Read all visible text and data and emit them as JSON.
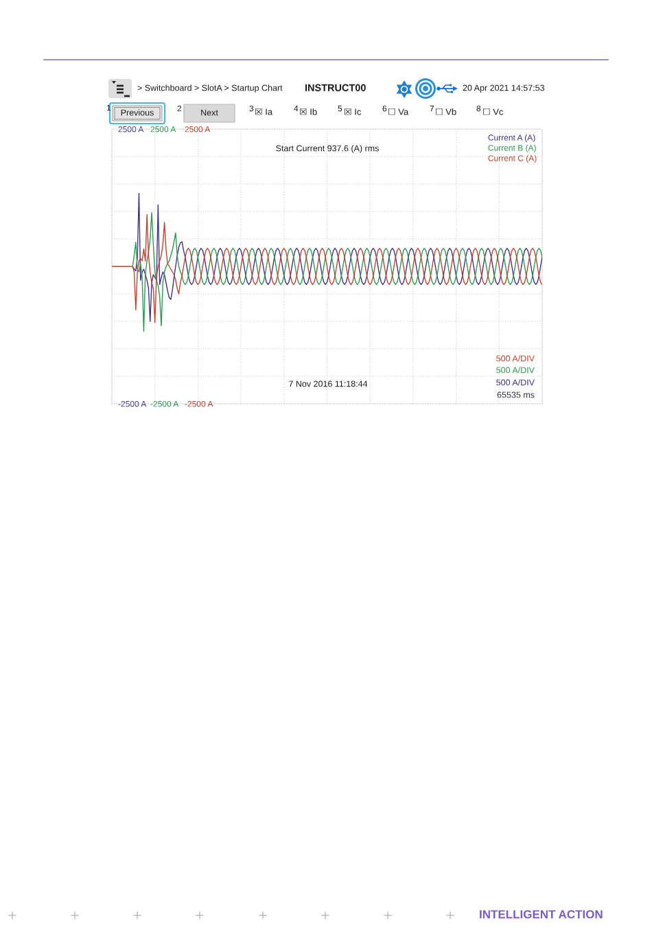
{
  "chart_data": {
    "type": "line",
    "title": "> Switchboard > SlotA > Startup Chart",
    "categories": [
      null,
      null,
      null,
      null,
      null,
      null,
      null,
      null,
      null,
      null,
      null,
      null,
      null,
      null,
      null,
      null,
      null,
      null,
      null,
      null,
      null,
      null,
      null,
      null,
      null,
      null,
      null,
      null,
      null,
      null,
      null,
      null,
      null,
      null,
      null,
      null,
      null,
      null,
      null,
      null,
      null,
      null,
      null,
      null,
      null,
      null,
      null,
      null,
      null,
      null,
      null,
      null,
      null,
      null,
      null,
      null,
      null,
      null,
      null,
      null,
      null,
      null,
      null,
      null,
      null,
      null,
      null,
      null,
      null,
      null,
      null,
      null,
      null,
      null,
      null,
      null,
      null,
      null,
      null,
      null,
      null,
      null,
      null,
      null,
      null,
      null,
      null,
      null,
      null,
      null,
      null,
      null,
      null,
      null,
      null,
      null,
      null,
      null,
      null,
      null,
      null,
      null,
      null,
      null,
      null,
      null,
      null,
      null,
      null,
      null,
      null,
      null,
      null,
      null,
      null,
      null,
      null,
      null,
      null,
      null,
      null,
      null,
      null,
      null,
      null,
      null,
      null,
      null,
      null,
      null,
      null,
      null,
      null,
      null,
      null,
      null,
      null,
      null,
      null,
      null,
      null,
      null,
      null,
      null,
      null,
      null,
      null,
      null,
      null,
      null,
      null,
      null,
      null,
      null,
      null,
      null,
      null,
      null,
      null,
      null,
      null,
      null,
      null,
      null,
      null,
      null,
      null,
      null,
      null,
      null,
      null,
      null,
      null,
      null,
      null,
      null,
      null,
      null,
      null,
      null,
      null,
      null,
      null,
      null,
      null,
      null,
      null,
      null,
      null,
      null,
      null,
      null,
      null,
      null,
      null,
      null,
      null,
      null,
      null,
      null,
      null,
      null,
      null,
      null,
      null,
      null,
      null,
      null,
      null,
      null,
      null,
      null,
      null,
      null,
      null,
      null,
      null,
      null,
      null,
      null,
      null,
      null,
      null,
      null,
      null,
      null,
      null,
      null,
      null,
      null,
      null,
      null,
      null,
      null,
      null,
      null,
      null,
      null,
      null,
      null,
      null,
      null,
      null,
      null,
      null,
      null,
      null,
      null,
      null,
      null,
      null,
      null,
      null,
      null,
      null,
      null,
      null,
      null,
      null,
      null,
      null,
      null,
      null,
      null,
      null,
      null,
      null,
      null,
      null,
      null,
      null
    ],
    "series": [
      {
        "name": "Current A (A)",
        "color": "#40308f",
        "axis": "y",
        "values": [
          null,
          null,
          null,
          null,
          null,
          null,
          null,
          null,
          null,
          null,
          null,
          null,
          null,
          0,
          -50,
          -80,
          150,
          1330,
          -250,
          -100,
          -50,
          -150,
          -250,
          -400,
          -1000,
          -300,
          -150,
          -200,
          -250,
          1120,
          -330,
          -200,
          -100,
          -150,
          -300,
          -450,
          -570,
          -600,
          -430,
          -200,
          0,
          200,
          350,
          430,
          450,
          290,
          170,
          0,
          -170,
          -290,
          -330,
          -290,
          -170,
          0,
          170,
          290,
          330,
          290,
          170,
          0,
          -170,
          -290,
          -330,
          -290,
          -170,
          0,
          170,
          290,
          330,
          290,
          170,
          0,
          -170,
          -290,
          -330,
          -290,
          -170,
          0,
          170,
          290,
          330,
          290,
          170,
          0,
          -170,
          -290,
          -330,
          -290,
          -170,
          0,
          170,
          290,
          330,
          290,
          170,
          0,
          -170,
          -290,
          -330,
          -290,
          -170,
          0,
          170,
          290,
          330,
          290,
          170,
          0,
          -170,
          -290,
          -330,
          -290,
          -170,
          0,
          170,
          290,
          330,
          290,
          170,
          0,
          -170,
          -290,
          -330,
          -290,
          -170,
          0,
          170,
          290,
          330,
          290,
          170,
          0,
          -170,
          -290,
          -330,
          -290,
          -170,
          0,
          170,
          290,
          330,
          290,
          170,
          0,
          -170,
          -290,
          -330,
          -290,
          -170,
          0,
          170,
          290,
          330,
          290,
          170,
          0,
          -170,
          -290,
          -330,
          -290,
          -170,
          0,
          170,
          290,
          330,
          290,
          170,
          0,
          -170,
          -290,
          -330,
          -290,
          -170,
          0,
          170,
          290,
          330,
          290,
          170,
          0,
          -170,
          -290,
          -330,
          -290,
          -170,
          0,
          170,
          290,
          330,
          290,
          170,
          0,
          -170,
          -290,
          -330,
          -290,
          -170,
          0,
          170,
          290,
          330,
          290,
          170,
          0,
          -170,
          -290,
          -330,
          -290,
          -170,
          0,
          170,
          290,
          330,
          290,
          170,
          0,
          -170,
          -290,
          -330,
          -290,
          -170,
          0,
          170,
          290,
          330,
          290,
          170,
          0,
          -170,
          -290,
          -330,
          -290,
          -170,
          0,
          170,
          290,
          330,
          290,
          170,
          0,
          -170,
          -290,
          -330,
          -290,
          -170,
          0,
          170,
          290,
          330,
          290,
          170,
          0,
          -170,
          -290,
          -330,
          -290,
          -170,
          0,
          170,
          290,
          330,
          290,
          170,
          0,
          -170,
          -290,
          -330,
          -290,
          -170,
          0,
          170
        ]
      },
      {
        "name": "Current B (A)",
        "color": "#2f9950",
        "axis": "y2",
        "values": [
          null,
          null,
          null,
          null,
          null,
          null,
          null,
          null,
          null,
          null,
          null,
          null,
          null,
          0,
          200,
          440,
          -50,
          -100,
          50,
          -200,
          -1180,
          -150,
          100,
          250,
          500,
          980,
          400,
          -100,
          -250,
          -350,
          -550,
          -1080,
          -300,
          -100,
          0,
          50,
          100,
          200,
          300,
          450,
          610,
          200,
          0,
          -100,
          -170,
          -290,
          -330,
          -290,
          -170,
          0,
          170,
          290,
          330,
          290,
          170,
          0,
          -170,
          -290,
          -330,
          -290,
          -170,
          0,
          170,
          290,
          330,
          290,
          170,
          0,
          -170,
          -290,
          -330,
          -290,
          -170,
          0,
          170,
          290,
          330,
          290,
          170,
          0,
          -170,
          -290,
          -330,
          -290,
          -170,
          0,
          170,
          290,
          330,
          290,
          170,
          0,
          -170,
          -290,
          -330,
          -290,
          -170,
          0,
          170,
          290,
          330,
          290,
          170,
          0,
          -170,
          -290,
          -330,
          -290,
          -170,
          0,
          170,
          290,
          330,
          290,
          170,
          0,
          -170,
          -290,
          -330,
          -290,
          -170,
          0,
          170,
          290,
          330,
          290,
          170,
          0,
          -170,
          -290,
          -330,
          -290,
          -170,
          0,
          170,
          290,
          330,
          290,
          170,
          0,
          -170,
          -290,
          -330,
          -290,
          -170,
          0,
          170,
          290,
          330,
          290,
          170,
          0,
          -170,
          -290,
          -330,
          -290,
          -170,
          0,
          170,
          290,
          330,
          290,
          170,
          0,
          -170,
          -290,
          -330,
          -290,
          -170,
          0,
          170,
          290,
          330,
          290,
          170,
          0,
          -170,
          -290,
          -330,
          -290,
          -170,
          0,
          170,
          290,
          330,
          290,
          170,
          0,
          -170,
          -290,
          -330,
          -290,
          -170,
          0,
          170,
          290,
          330,
          290,
          170,
          0,
          -170,
          -290,
          -330,
          -290,
          -170,
          0,
          170,
          290,
          330,
          290,
          170,
          0,
          -170,
          -290,
          -330,
          -290,
          -170,
          0,
          170,
          290,
          330,
          290,
          170,
          0,
          -170,
          -290,
          -330,
          -290,
          -170,
          0,
          170,
          290,
          330,
          290,
          170,
          0,
          -170,
          -290,
          -330,
          -290,
          -170,
          0,
          170,
          290,
          330,
          290,
          170,
          0,
          -170,
          -290,
          -330,
          -290,
          -170,
          0,
          170,
          290,
          330,
          290,
          170,
          0,
          -170,
          -290,
          -330,
          -290,
          -170,
          0,
          170,
          290,
          330,
          290,
          170
        ]
      },
      {
        "name": "Current C (A)",
        "color": "#c0442e",
        "axis": "y3",
        "values": [
          0,
          0,
          0,
          0,
          0,
          0,
          0,
          0,
          0,
          0,
          0,
          0,
          0,
          0,
          -100,
          -790,
          -100,
          100,
          150,
          100,
          320,
          100,
          940,
          200,
          -100,
          -300,
          -400,
          -1020,
          -200,
          0,
          100,
          200,
          400,
          800,
          300,
          50,
          0,
          -50,
          -100,
          -150,
          -250,
          -400,
          -500,
          -290,
          -170,
          0,
          170,
          290,
          330,
          290,
          170,
          0,
          -170,
          -290,
          -330,
          -290,
          -170,
          0,
          170,
          290,
          330,
          290,
          170,
          0,
          -170,
          -290,
          -330,
          -290,
          -170,
          0,
          170,
          290,
          330,
          290,
          170,
          0,
          -170,
          -290,
          -330,
          -290,
          -170,
          0,
          170,
          290,
          330,
          290,
          170,
          0,
          -170,
          -290,
          -330,
          -290,
          -170,
          0,
          170,
          290,
          330,
          290,
          170,
          0,
          -170,
          -290,
          -330,
          -290,
          -170,
          0,
          170,
          290,
          330,
          290,
          170,
          0,
          -170,
          -290,
          -330,
          -290,
          -170,
          0,
          170,
          290,
          330,
          290,
          170,
          0,
          -170,
          -290,
          -330,
          -290,
          -170,
          0,
          170,
          290,
          330,
          290,
          170,
          0,
          -170,
          -290,
          -330,
          -290,
          -170,
          0,
          170,
          290,
          330,
          290,
          170,
          0,
          -170,
          -290,
          -330,
          -290,
          -170,
          0,
          170,
          290,
          330,
          290,
          170,
          0,
          -170,
          -290,
          -330,
          -290,
          -170,
          0,
          170,
          290,
          330,
          290,
          170,
          0,
          -170,
          -290,
          -330,
          -290,
          -170,
          0,
          170,
          290,
          330,
          290,
          170,
          0,
          -170,
          -290,
          -330,
          -290,
          -170,
          0,
          170,
          290,
          330,
          290,
          170,
          0,
          -170,
          -290,
          -330,
          -290,
          -170,
          0,
          170,
          290,
          330,
          290,
          170,
          0,
          -170,
          -290,
          -330,
          -290,
          -170,
          0,
          170,
          290,
          330,
          290,
          170,
          0,
          -170,
          -290,
          -330,
          -290,
          -170,
          0,
          170,
          290,
          330,
          290,
          170,
          0,
          -170,
          -290,
          -330,
          -290,
          -170,
          0,
          170,
          290,
          330,
          290,
          170,
          0,
          -170,
          -290,
          -330,
          -290,
          -170,
          0,
          170,
          290,
          330,
          290,
          170,
          0,
          -170,
          -290,
          -330,
          -290,
          -170,
          0,
          170,
          290,
          330,
          290,
          170,
          0,
          -170,
          -290,
          -330
        ]
      }
    ],
    "ylim": [
      -2500,
      2500
    ],
    "yticks": [
      {
        "value": -2500,
        "label": "-2500 A"
      },
      {
        "value": -2000,
        "label": null
      },
      {
        "value": -1500,
        "label": null
      },
      {
        "value": -1000,
        "label": null
      },
      {
        "value": -500,
        "label": null
      },
      {
        "value": 0,
        "label": null
      },
      {
        "value": 500,
        "label": null
      },
      {
        "value": 1000,
        "label": null
      },
      {
        "value": 1500,
        "label": null
      },
      {
        "value": 2000,
        "label": null
      },
      {
        "value": 2500,
        "label": "2500 A"
      }
    ],
    "y2lim": [
      -2500,
      2500
    ],
    "y2ticks": [
      {
        "value": -2500,
        "label": "-2500 A"
      },
      {
        "value": 2500,
        "label": "2500 A"
      }
    ],
    "y3lim": [
      -2500,
      2500
    ],
    "y3ticks": [
      {
        "value": -2500,
        "label": "-2500 A"
      },
      {
        "value": 2500,
        "label": "2500 A"
      }
    ],
    "grid": true,
    "legend": "top right",
    "annotations": [
      "INSTRUCT00",
      "20 Apr 2021 14:57:53",
      "1",
      "Previous",
      "2",
      "Next",
      "3",
      "☒ Ia",
      "4",
      "☒ Ib",
      "5",
      "☒ Ic",
      "6",
      "☐ Va",
      "7",
      "☐ Vb",
      "8",
      "☐ Vc",
      "Start Current 937.6 (A) rms",
      "500 A/DIV",
      "500 A/DIV",
      "500 A/DIV",
      "7 Nov 2016 11:18:44",
      "65535 ms",
      "INTELLIGENT ACTION"
    ]
  }
}
